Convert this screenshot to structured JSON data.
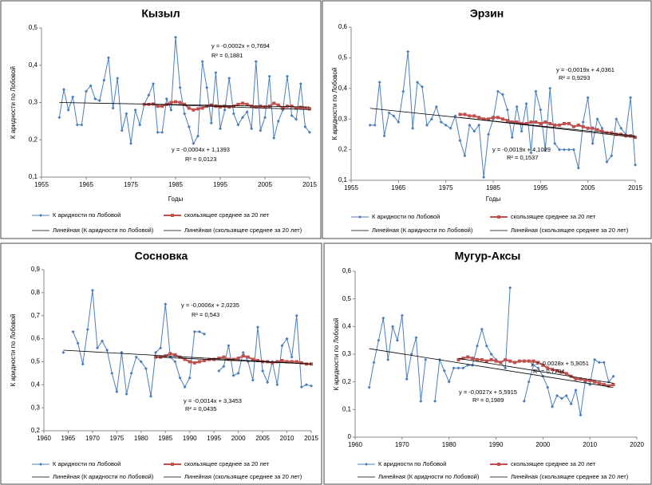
{
  "chart_data": [
    {
      "type": "line",
      "title": "Кызыл",
      "y_label": "К аридности по Лобовой",
      "x_label": "Годы",
      "x": [
        1959,
        1960,
        1961,
        1962,
        1963,
        1964,
        1965,
        1966,
        1967,
        1968,
        1969,
        1970,
        1971,
        1972,
        1973,
        1974,
        1975,
        1976,
        1977,
        1978,
        1979,
        1980,
        1981,
        1982,
        1983,
        1984,
        1985,
        1986,
        1987,
        1988,
        1989,
        1990,
        1991,
        1992,
        1993,
        1994,
        1995,
        1996,
        1997,
        1998,
        1999,
        2000,
        2001,
        2002,
        2003,
        2004,
        2005,
        2006,
        2007,
        2008,
        2009,
        2010,
        2011,
        2012,
        2013,
        2014,
        2015
      ],
      "series": [
        {
          "name": "К аридности по Лобовой",
          "color": "#4a7ebb",
          "values": [
            0.26,
            0.335,
            0.28,
            0.315,
            0.24,
            0.24,
            0.33,
            0.345,
            0.31,
            0.305,
            0.36,
            0.42,
            0.285,
            0.365,
            0.225,
            0.27,
            0.19,
            0.28,
            0.24,
            0.295,
            0.32,
            0.35,
            0.22,
            0.22,
            0.31,
            0.28,
            0.475,
            0.34,
            0.27,
            0.235,
            0.19,
            0.21,
            0.41,
            0.34,
            0.245,
            0.38,
            0.23,
            0.28,
            0.365,
            0.27,
            0.24,
            0.26,
            0.275,
            0.23,
            0.41,
            0.225,
            0.26,
            0.37,
            0.205,
            0.25,
            0.28,
            0.37,
            0.265,
            0.255,
            0.35,
            0.235,
            0.22
          ]
        },
        {
          "name": "скользящее среднее за 20 лет",
          "color": "#c0504d",
          "values": [
            null,
            null,
            null,
            null,
            null,
            null,
            null,
            null,
            null,
            null,
            null,
            null,
            null,
            null,
            null,
            null,
            null,
            null,
            null,
            0.295,
            0.295,
            0.296,
            0.29,
            0.29,
            0.295,
            0.3,
            0.302,
            0.3,
            0.295,
            0.285,
            0.28,
            0.283,
            0.285,
            0.29,
            0.293,
            0.29,
            0.288,
            0.29,
            0.288,
            0.29,
            0.295,
            0.298,
            0.295,
            0.29,
            0.288,
            0.29,
            0.288,
            0.29,
            0.298,
            0.293,
            0.285,
            0.29,
            0.29,
            0.285,
            0.287,
            0.285,
            0.283
          ]
        },
        {
          "name": "Линейная (К аридности по Лобовой)",
          "color": "#000000",
          "x": [
            1959,
            2015
          ],
          "values": [
            0.3,
            0.288
          ]
        },
        {
          "name": "Линейная (скользящее среднее за 20 лет)",
          "color": "#000000",
          "x": [
            1978,
            2015
          ],
          "values": [
            0.296,
            0.281
          ]
        }
      ],
      "xlim": [
        1955,
        2015
      ],
      "xticks": [
        1955,
        1965,
        1975,
        1985,
        1995,
        2005,
        2015
      ],
      "ylim": [
        0.1,
        0.5
      ],
      "yticks": [
        {
          "value": 0.1,
          "label": "0,1"
        },
        {
          "value": 0.2,
          "label": "0,2"
        },
        {
          "value": 0.3,
          "label": "0,3"
        },
        {
          "value": 0.4,
          "label": "0,4"
        },
        {
          "value": 0.5,
          "label": "0,5"
        }
      ],
      "annotations": [
        "y = -0,0002x + 0,7694",
        "R² = 0,1881",
        "y = -0,0004x + 1,1393",
        "R² = 0,0123"
      ]
    },
    {
      "type": "line",
      "title": "Эрзин",
      "y_label": "К аридности по Лобовой",
      "x_label": "Годы",
      "x": [
        1959,
        1960,
        1961,
        1962,
        1963,
        1964,
        1965,
        1966,
        1967,
        1968,
        1969,
        1970,
        1971,
        1972,
        1973,
        1974,
        1975,
        1976,
        1977,
        1978,
        1979,
        1980,
        1981,
        1982,
        1983,
        1984,
        1985,
        1986,
        1987,
        1988,
        1989,
        1990,
        1991,
        1992,
        1993,
        1994,
        1995,
        1996,
        1997,
        1998,
        1999,
        2000,
        2001,
        2002,
        2003,
        2004,
        2005,
        2006,
        2007,
        2008,
        2009,
        2010,
        2011,
        2012,
        2013,
        2014,
        2015
      ],
      "series": [
        {
          "name": "К аридности по Лобовой",
          "color": "#4a7ebb",
          "values": [
            0.28,
            0.28,
            0.42,
            0.245,
            0.32,
            0.31,
            0.29,
            0.39,
            0.52,
            0.27,
            0.42,
            0.405,
            0.28,
            0.3,
            0.34,
            0.29,
            0.28,
            0.27,
            0.31,
            0.23,
            0.18,
            0.28,
            0.26,
            0.28,
            0.11,
            0.25,
            0.3,
            0.39,
            0.38,
            0.33,
            0.24,
            0.34,
            0.26,
            0.35,
            0.19,
            0.39,
            0.33,
            0.2,
            0.4,
            0.22,
            0.2,
            0.2,
            0.2,
            0.2,
            0.14,
            0.29,
            0.37,
            0.22,
            0.3,
            0.27,
            0.16,
            0.18,
            0.3,
            0.27,
            0.25,
            0.37,
            0.15
          ]
        },
        {
          "name": "скользящее среднее за 20 лет",
          "color": "#c0504d",
          "values": [
            null,
            null,
            null,
            null,
            null,
            null,
            null,
            null,
            null,
            null,
            null,
            null,
            null,
            null,
            null,
            null,
            null,
            null,
            null,
            0.315,
            0.315,
            0.31,
            0.31,
            0.305,
            0.3,
            0.3,
            0.305,
            0.305,
            0.3,
            0.295,
            0.29,
            0.29,
            0.285,
            0.285,
            0.29,
            0.29,
            0.285,
            0.29,
            0.285,
            0.28,
            0.28,
            0.285,
            0.285,
            0.275,
            0.28,
            0.275,
            0.27,
            0.27,
            0.265,
            0.26,
            0.255,
            0.255,
            0.25,
            0.25,
            0.245,
            0.245,
            0.24
          ]
        },
        {
          "name": "Линейная (К аридности по Лобовой)",
          "color": "#000000",
          "x": [
            1959,
            2015
          ],
          "values": [
            0.335,
            0.245
          ]
        },
        {
          "name": "Линейная (скользящее среднее за 20 лет)",
          "color": "#000000",
          "x": [
            1978,
            2015
          ],
          "values": [
            0.305,
            0.24
          ]
        }
      ],
      "xlim": [
        1955,
        2015
      ],
      "xticks": [
        1955,
        1965,
        1975,
        1985,
        1995,
        2005,
        2015
      ],
      "ylim": [
        0.1,
        0.6
      ],
      "yticks": [
        {
          "value": 0.1,
          "label": "0,1"
        },
        {
          "value": 0.2,
          "label": "0,2"
        },
        {
          "value": 0.3,
          "label": "0,3"
        },
        {
          "value": 0.4,
          "label": "0,4"
        },
        {
          "value": 0.5,
          "label": "0,5"
        },
        {
          "value": 0.6,
          "label": "0,6"
        }
      ],
      "annotations": [
        "y = -0,0019x + 4,0361",
        "R² = 0,9293",
        "y = -0,0019x + 4,1029",
        "R² = 0,1537"
      ]
    },
    {
      "type": "line",
      "title": "Сосновка",
      "y_label": "К аридности по Лобовой",
      "x": [
        1964,
        1965,
        1966,
        1967,
        1968,
        1969,
        1970,
        1971,
        1972,
        1973,
        1974,
        1975,
        1976,
        1977,
        1978,
        1979,
        1980,
        1981,
        1982,
        1983,
        1984,
        1985,
        1986,
        1987,
        1988,
        1989,
        1990,
        1991,
        1992,
        1993,
        1994,
        1995,
        1996,
        1997,
        1998,
        1999,
        2000,
        2001,
        2002,
        2003,
        2004,
        2005,
        2006,
        2007,
        2008,
        2009,
        2010,
        2011,
        2012,
        2013,
        2014,
        2015
      ],
      "series": [
        {
          "name": "К аридности по Лобовой",
          "color": "#4a7ebb",
          "values": [
            0.54,
            null,
            0.63,
            0.58,
            0.49,
            0.64,
            0.81,
            0.56,
            0.59,
            0.55,
            0.45,
            0.37,
            0.54,
            0.36,
            0.45,
            0.52,
            0.5,
            0.47,
            0.35,
            0.54,
            0.56,
            0.75,
            0.52,
            0.5,
            0.43,
            0.39,
            0.43,
            0.63,
            0.63,
            0.62,
            null,
            null,
            0.46,
            0.48,
            0.57,
            0.44,
            0.45,
            0.54,
            0.5,
            0.42,
            0.65,
            0.46,
            0.41,
            0.5,
            0.4,
            0.57,
            0.6,
            0.52,
            0.7,
            0.39,
            0.4,
            0.395
          ]
        },
        {
          "name": "скользящее среднее за 20 лет",
          "color": "#c0504d",
          "values": [
            null,
            null,
            null,
            null,
            null,
            null,
            null,
            null,
            null,
            null,
            null,
            null,
            null,
            null,
            null,
            null,
            null,
            null,
            null,
            0.52,
            0.52,
            0.525,
            0.535,
            0.53,
            0.52,
            0.51,
            0.5,
            0.495,
            0.5,
            0.505,
            0.51,
            0.51,
            0.515,
            0.52,
            0.51,
            0.51,
            0.515,
            0.525,
            0.52,
            0.51,
            0.505,
            0.5,
            0.5,
            0.495,
            0.5,
            0.505,
            0.5,
            0.5,
            0.5,
            0.495,
            0.49,
            0.49
          ]
        },
        {
          "name": "Линейная (К аридности по Лобовой)",
          "color": "#000000",
          "x": [
            1964,
            2015
          ],
          "values": [
            0.55,
            0.49
          ]
        },
        {
          "name": "Линейная (скользящее среднее за 20 лет)",
          "color": "#000000",
          "x": [
            1983,
            2015
          ],
          "values": [
            0.52,
            0.49
          ]
        }
      ],
      "xlim": [
        1960,
        2015
      ],
      "xticks": [
        1960,
        1965,
        1970,
        1975,
        1980,
        1985,
        1990,
        1995,
        2000,
        2005,
        2010,
        2015
      ],
      "ylim": [
        0.2,
        0.9
      ],
      "yticks": [
        {
          "value": 0.2,
          "label": "0,2"
        },
        {
          "value": 0.3,
          "label": "0,3"
        },
        {
          "value": 0.4,
          "label": "0,4"
        },
        {
          "value": 0.5,
          "label": "0,5"
        },
        {
          "value": 0.6,
          "label": "0,6"
        },
        {
          "value": 0.7,
          "label": "0,7"
        },
        {
          "value": 0.8,
          "label": "0,8"
        },
        {
          "value": 0.9,
          "label": "0,9"
        }
      ],
      "annotations": [
        "y = -0,0006x + 2,0235",
        "R² = 0,543",
        "y = -0,0014x + 3,3453",
        "R² = 0,0435"
      ]
    },
    {
      "type": "line",
      "title": "Мугур-Аксы",
      "y_label": "К аридности по Лобовой",
      "x": [
        1963,
        1964,
        1965,
        1966,
        1967,
        1968,
        1969,
        1970,
        1971,
        1972,
        1973,
        1974,
        1975,
        1976,
        1977,
        1978,
        1979,
        1980,
        1981,
        1982,
        1983,
        1984,
        1985,
        1986,
        1987,
        1988,
        1989,
        1990,
        1991,
        1992,
        1993,
        1994,
        1995,
        1996,
        1997,
        1998,
        1999,
        2000,
        2001,
        2002,
        2003,
        2004,
        2005,
        2006,
        2007,
        2008,
        2009,
        2010,
        2011,
        2012,
        2013,
        2014,
        2015
      ],
      "series": [
        {
          "name": "К аридности по Лобовой",
          "color": "#4a7ebb",
          "values": [
            0.18,
            0.27,
            0.35,
            0.43,
            0.28,
            0.4,
            0.35,
            0.44,
            0.21,
            0.3,
            0.36,
            0.13,
            0.28,
            null,
            0.13,
            0.28,
            0.24,
            0.2,
            0.25,
            0.25,
            0.25,
            0.26,
            0.26,
            0.33,
            0.39,
            0.33,
            0.3,
            0.28,
            0.27,
            0.25,
            0.54,
            null,
            null,
            0.13,
            0.2,
            0.26,
            0.25,
            0.22,
            0.18,
            0.11,
            0.15,
            0.14,
            0.15,
            0.12,
            0.17,
            0.08,
            0.2,
            0.19,
            0.28,
            0.27,
            0.27,
            0.2,
            0.22
          ]
        },
        {
          "name": "скользящее среднее за 20 лет",
          "color": "#c0504d",
          "values": [
            null,
            null,
            null,
            null,
            null,
            null,
            null,
            null,
            null,
            null,
            null,
            null,
            null,
            null,
            null,
            null,
            null,
            null,
            null,
            0.28,
            0.285,
            0.29,
            0.285,
            0.28,
            0.28,
            0.275,
            0.28,
            0.275,
            0.27,
            0.28,
            0.275,
            0.27,
            0.275,
            0.275,
            0.275,
            0.275,
            0.27,
            0.26,
            0.25,
            0.245,
            0.24,
            0.235,
            0.23,
            0.22,
            0.21,
            0.21,
            0.205,
            0.205,
            0.2,
            0.195,
            0.19,
            0.185,
            0.19
          ]
        },
        {
          "name": "Линейная (К аридности по Лобовой)",
          "color": "#000000",
          "x": [
            1963,
            2015
          ],
          "values": [
            0.32,
            0.18
          ]
        },
        {
          "name": "Линейная (скользящее среднее за 20 лет)",
          "color": "#000000",
          "x": [
            1982,
            2015
          ],
          "values": [
            0.285,
            0.195
          ]
        }
      ],
      "xlim": [
        1960,
        2020
      ],
      "xticks": [
        1960,
        1970,
        1980,
        1990,
        2000,
        2010,
        2020
      ],
      "ylim": [
        0,
        0.6
      ],
      "yticks": [
        0,
        {
          "value": 0.1,
          "label": "0,1"
        },
        {
          "value": 0.2,
          "label": "0,2"
        },
        {
          "value": 0.3,
          "label": "0,3"
        },
        {
          "value": 0.4,
          "label": "0,4"
        },
        {
          "value": 0.5,
          "label": "0,5"
        },
        {
          "value": 0.6,
          "label": "0,6"
        }
      ],
      "annotations": [
        "y = -0,0028x + 5,9051",
        "R² = 0,7784",
        "y = -0,0027x + 5,5915",
        "R² = 0,1989"
      ]
    }
  ]
}
